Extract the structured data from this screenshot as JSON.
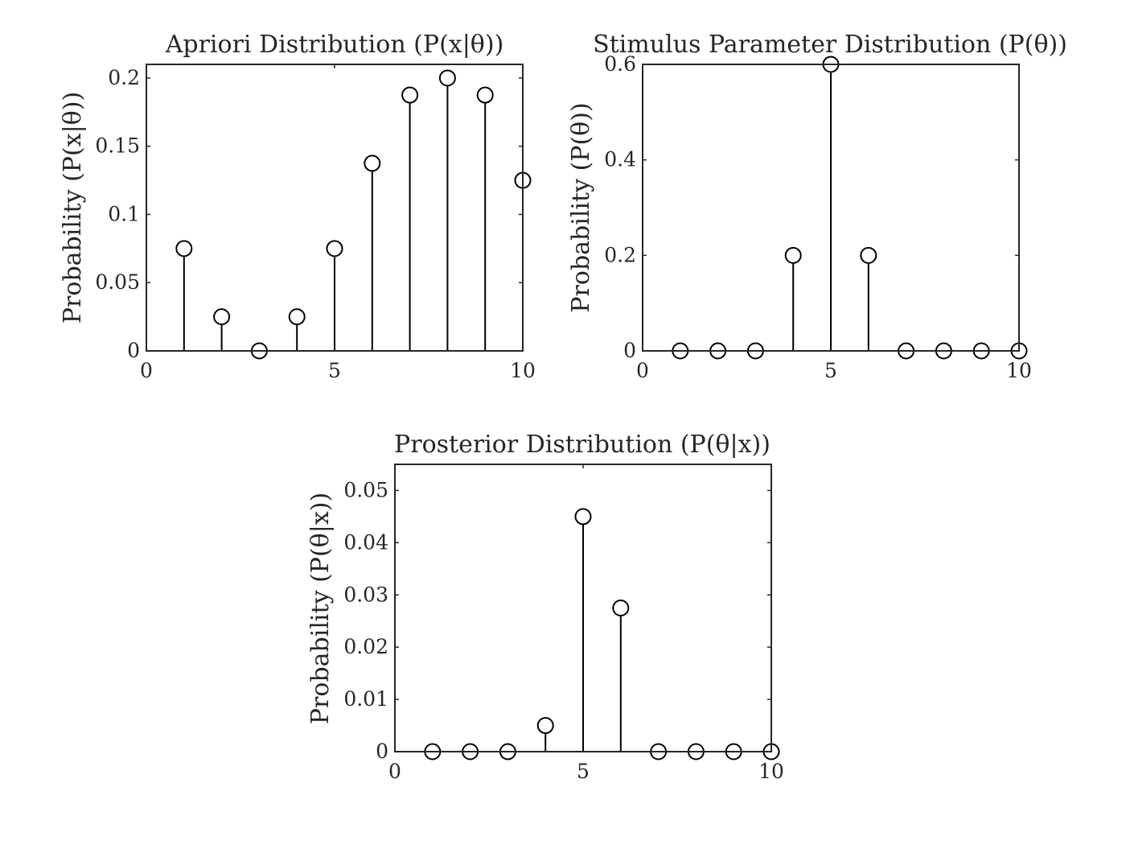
{
  "figure": {
    "background": "#ffffff",
    "stroke_color": "#000000"
  },
  "chart_data": [
    {
      "id": "apriori",
      "type": "stem",
      "title": "Apriori Distribution (P(x|θ))",
      "xlabel": "",
      "ylabel": "Probability (P(x|θ))",
      "xlim": [
        0,
        10
      ],
      "ylim": [
        0,
        0.21
      ],
      "xticks": [
        0,
        5,
        10
      ],
      "xtick_labels": [
        "0",
        "5",
        "10"
      ],
      "yticks": [
        0,
        0.05,
        0.1,
        0.15,
        0.2
      ],
      "ytick_labels": [
        "0",
        "0.05",
        "0.1",
        "0.15",
        "0.2"
      ],
      "grid": false,
      "x": [
        1,
        2,
        3,
        4,
        5,
        6,
        7,
        8,
        9,
        10
      ],
      "values": [
        0.075,
        0.025,
        0,
        0.025,
        0.075,
        0.1375,
        0.1875,
        0.2,
        0.1875,
        0.125
      ]
    },
    {
      "id": "stimulus",
      "type": "stem",
      "title": "Stimulus Parameter Distribution (P(θ))",
      "xlabel": "",
      "ylabel": "Probability (P(θ))",
      "xlim": [
        0,
        10
      ],
      "ylim": [
        0,
        0.6
      ],
      "xticks": [
        0,
        5,
        10
      ],
      "xtick_labels": [
        "0",
        "5",
        "10"
      ],
      "yticks": [
        0,
        0.2,
        0.4,
        0.6
      ],
      "ytick_labels": [
        "0",
        "0.2",
        "0.4",
        "0.6"
      ],
      "grid": false,
      "x": [
        1,
        2,
        3,
        4,
        5,
        6,
        7,
        8,
        9,
        10
      ],
      "values": [
        0,
        0,
        0,
        0.2,
        0.6,
        0.2,
        0,
        0,
        0,
        0
      ]
    },
    {
      "id": "posterior",
      "type": "stem",
      "title": "Prosterior Distribution (P(θ|x))",
      "xlabel": "",
      "ylabel": "Probability (P(θ|x))",
      "xlim": [
        0,
        10
      ],
      "ylim": [
        0,
        0.055
      ],
      "xticks": [
        0,
        5,
        10
      ],
      "xtick_labels": [
        "0",
        "5",
        "10"
      ],
      "yticks": [
        0,
        0.01,
        0.02,
        0.03,
        0.04,
        0.05
      ],
      "ytick_labels": [
        "0",
        "0.01",
        "0.02",
        "0.03",
        "0.04",
        "0.05"
      ],
      "grid": false,
      "x": [
        1,
        2,
        3,
        4,
        5,
        6,
        7,
        8,
        9,
        10
      ],
      "values": [
        0,
        0,
        0,
        0.005,
        0.045,
        0.0275,
        0,
        0,
        0,
        0
      ]
    }
  ]
}
